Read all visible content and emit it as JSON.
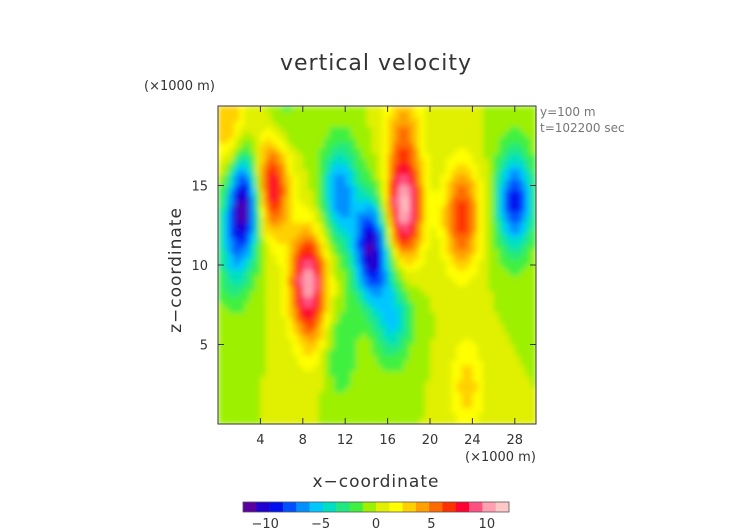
{
  "chart_data": {
    "type": "heatmap",
    "title": "vertical velocity",
    "xlabel": "x−coordinate",
    "ylabel": "z−coordinate",
    "x_unit": "(×1000 m)",
    "y_unit": "(×1000 m)",
    "annotations": [
      "y=100 m",
      "t=102200 sec"
    ],
    "xlim": [
      0,
      30
    ],
    "ylim": [
      0,
      20
    ],
    "x_ticks": [
      4,
      8,
      12,
      16,
      20,
      24,
      28
    ],
    "y_ticks": [
      5,
      10,
      15
    ],
    "x_tick_labels": [
      "4",
      "8",
      "12",
      "16",
      "20",
      "24",
      "28"
    ],
    "y_tick_labels": [
      "5",
      "10",
      "15"
    ],
    "colorbar": {
      "range": [
        -12,
        12
      ],
      "ticks": [
        -10,
        -5,
        0,
        5,
        10
      ],
      "tick_labels": [
        "−10",
        "−5",
        "0",
        "5",
        "10"
      ],
      "colors": [
        "#5a00a0",
        "#2000d0",
        "#0010f0",
        "#0050ff",
        "#0090ff",
        "#00c8ff",
        "#00e0c0",
        "#20e880",
        "#40f040",
        "#9cf000",
        "#e0f000",
        "#ffff00",
        "#ffd000",
        "#ffa000",
        "#ff6a00",
        "#ff3000",
        "#ff0030",
        "#ff5080",
        "#ffa0b0",
        "#ffc8c8"
      ]
    },
    "features": [
      {
        "x": 2.5,
        "z": 14.0,
        "value": -11
      },
      {
        "x": 5.0,
        "z": 15.0,
        "value": 9
      },
      {
        "x": 8.5,
        "z": 9.0,
        "value": 10
      },
      {
        "x": 14.5,
        "z": 11.0,
        "value": -11
      },
      {
        "x": 17.5,
        "z": 13.5,
        "value": 11
      },
      {
        "x": 23.0,
        "z": 13.0,
        "value": 7
      },
      {
        "x": 28.0,
        "z": 14.0,
        "value": -9
      },
      {
        "x": 1.0,
        "z": 18.5,
        "value": 4
      },
      {
        "x": 1.5,
        "z": 10.5,
        "value": -4
      },
      {
        "x": 11.5,
        "z": 14.5,
        "value": -7
      },
      {
        "x": 6.0,
        "z": 19.0,
        "value": -2
      },
      {
        "x": 17.5,
        "z": 18.5,
        "value": 4
      },
      {
        "x": 16.5,
        "z": 6.5,
        "value": -5
      },
      {
        "x": 23.5,
        "z": 1.5,
        "value": 5
      },
      {
        "x": 11.5,
        "z": 4.0,
        "value": -3
      },
      {
        "x": 9.0,
        "z": 5.0,
        "value": 2
      }
    ]
  }
}
